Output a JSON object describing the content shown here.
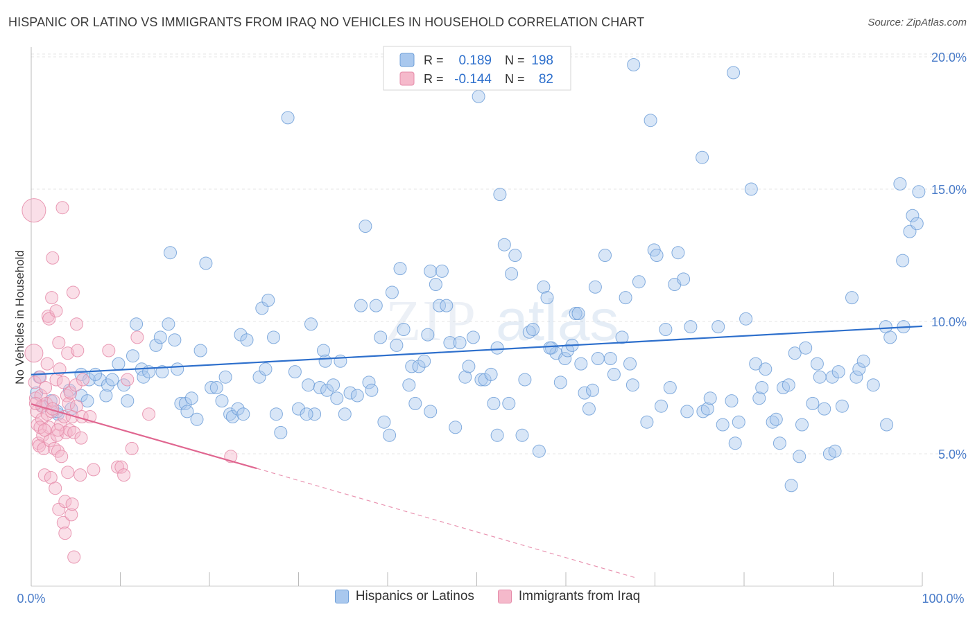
{
  "header": {
    "title": "HISPANIC OR LATINO VS IMMIGRANTS FROM IRAQ NO VEHICLES IN HOUSEHOLD CORRELATION CHART",
    "source": "Source: ZipAtlas.com"
  },
  "watermark": {
    "zip": "ZIP",
    "atlas": "atlas"
  },
  "stats_box": {
    "rows": [
      {
        "r_label": "R =",
        "r_value": "0.189",
        "n_label": "N =",
        "n_value": "198",
        "color": "#a9c8ee",
        "border": "#6f9fd8"
      },
      {
        "r_label": "R =",
        "r_value": "-0.144",
        "n_label": "N =",
        "n_value": "82",
        "color": "#f5b9cb",
        "border": "#e58aa8"
      }
    ]
  },
  "legend": [
    {
      "label": "Hispanics or Latinos",
      "color": "#a9c8ee",
      "border": "#6f9fd8"
    },
    {
      "label": "Immigrants from Iraq",
      "color": "#f5b9cb",
      "border": "#e58aa8"
    }
  ],
  "chart_data": {
    "type": "scatter",
    "title": "HISPANIC OR LATINO VS IMMIGRANTS FROM IRAQ NO VEHICLES IN HOUSEHOLD CORRELATION CHART",
    "xlabel": "",
    "ylabel": "No Vehicles in Household",
    "xlim": [
      0,
      100
    ],
    "ylim": [
      0,
      20.8
    ],
    "x_tick_labels": [
      "0.0%",
      "100.0%"
    ],
    "y_ticks": [
      5,
      10,
      15,
      20
    ],
    "y_tick_labels": [
      "5.0%",
      "10.0%",
      "15.0%",
      "20.0%"
    ],
    "grid": true,
    "legend_position": "bottom",
    "series": [
      {
        "name": "Hispanics or Latinos",
        "color": "#6f9fd8",
        "fill": "#a9c8ee",
        "trend": {
          "x": [
            0,
            100
          ],
          "y": [
            7.99,
            9.82
          ],
          "dashed_to": null,
          "color": "#2d6fcc"
        },
        "points": [
          [
            0.6,
            7.3
          ],
          [
            1.3,
            6.8
          ],
          [
            2.2,
            7.0
          ],
          [
            3.0,
            6.5
          ],
          [
            4.3,
            7.4
          ],
          [
            4.5,
            6.7
          ],
          [
            5.6,
            7.2
          ],
          [
            5.6,
            8.0
          ],
          [
            6.3,
            7.0
          ],
          [
            6.5,
            7.8
          ],
          [
            7.7,
            7.8
          ],
          [
            8.4,
            7.2
          ],
          [
            8.6,
            7.6
          ],
          [
            9.1,
            7.8
          ],
          [
            9.8,
            8.4
          ],
          [
            10.4,
            7.6
          ],
          [
            10.8,
            7.0
          ],
          [
            11.4,
            8.7
          ],
          [
            11.8,
            9.9
          ],
          [
            12.4,
            8.2
          ],
          [
            12.6,
            7.9
          ],
          [
            13.2,
            8.1
          ],
          [
            14.0,
            9.1
          ],
          [
            14.5,
            9.4
          ],
          [
            14.7,
            8.1
          ],
          [
            15.4,
            9.9
          ],
          [
            15.6,
            12.6
          ],
          [
            16.1,
            9.3
          ],
          [
            16.8,
            6.9
          ],
          [
            17.3,
            6.9
          ],
          [
            17.5,
            6.6
          ],
          [
            18.0,
            7.1
          ],
          [
            18.6,
            6.3
          ],
          [
            19.0,
            8.9
          ],
          [
            19.6,
            12.2
          ],
          [
            20.2,
            7.5
          ],
          [
            20.8,
            7.5
          ],
          [
            21.4,
            7.0
          ],
          [
            21.8,
            7.9
          ],
          [
            22.3,
            6.5
          ],
          [
            22.6,
            6.4
          ],
          [
            23.2,
            6.7
          ],
          [
            23.5,
            9.5
          ],
          [
            23.8,
            6.5
          ],
          [
            24.2,
            9.3
          ],
          [
            25.6,
            7.9
          ],
          [
            25.9,
            10.5
          ],
          [
            26.3,
            8.2
          ],
          [
            26.6,
            10.8
          ],
          [
            27.2,
            9.4
          ],
          [
            27.5,
            6.5
          ],
          [
            28.0,
            5.8
          ],
          [
            28.8,
            17.7
          ],
          [
            29.6,
            8.1
          ],
          [
            30.0,
            6.7
          ],
          [
            31.1,
            7.6
          ],
          [
            31.4,
            9.9
          ],
          [
            31.8,
            6.5
          ],
          [
            32.4,
            7.5
          ],
          [
            32.8,
            8.9
          ],
          [
            33.2,
            7.4
          ],
          [
            33.9,
            7.6
          ],
          [
            34.3,
            7.1
          ],
          [
            34.7,
            8.5
          ],
          [
            35.2,
            6.5
          ],
          [
            35.8,
            7.3
          ],
          [
            36.6,
            7.2
          ],
          [
            37.0,
            10.6
          ],
          [
            37.5,
            13.6
          ],
          [
            37.9,
            7.7
          ],
          [
            38.2,
            7.4
          ],
          [
            38.7,
            10.6
          ],
          [
            39.2,
            9.4
          ],
          [
            39.6,
            6.2
          ],
          [
            40.2,
            5.7
          ],
          [
            40.5,
            11.1
          ],
          [
            41.0,
            9.1
          ],
          [
            41.4,
            12.0
          ],
          [
            41.8,
            9.7
          ],
          [
            42.4,
            7.6
          ],
          [
            42.7,
            8.3
          ],
          [
            43.1,
            6.9
          ],
          [
            43.5,
            8.3
          ],
          [
            44.1,
            8.5
          ],
          [
            44.5,
            9.5
          ],
          [
            44.8,
            11.9
          ],
          [
            45.4,
            11.4
          ],
          [
            45.8,
            10.6
          ],
          [
            46.1,
            11.9
          ],
          [
            46.6,
            10.6
          ],
          [
            47.0,
            9.2
          ],
          [
            47.6,
            6.0
          ],
          [
            48.1,
            9.2
          ],
          [
            48.7,
            7.9
          ],
          [
            49.1,
            8.3
          ],
          [
            49.6,
            9.4
          ],
          [
            50.2,
            18.5
          ],
          [
            50.5,
            7.8
          ],
          [
            50.9,
            7.8
          ],
          [
            51.6,
            8.0
          ],
          [
            51.9,
            6.9
          ],
          [
            52.3,
            9.0
          ],
          [
            52.6,
            14.8
          ],
          [
            53.1,
            12.9
          ],
          [
            53.6,
            6.9
          ],
          [
            53.9,
            11.8
          ],
          [
            54.3,
            12.5
          ],
          [
            55.1,
            5.7
          ],
          [
            55.4,
            7.8
          ],
          [
            55.9,
            9.6
          ],
          [
            56.3,
            9.7
          ],
          [
            57.0,
            5.1
          ],
          [
            57.5,
            11.3
          ],
          [
            57.9,
            10.9
          ],
          [
            58.4,
            9.0
          ],
          [
            58.9,
            8.8
          ],
          [
            59.4,
            7.7
          ],
          [
            59.9,
            8.6
          ],
          [
            60.2,
            8.9
          ],
          [
            60.7,
            9.1
          ],
          [
            61.1,
            10.3
          ],
          [
            61.7,
            8.4
          ],
          [
            62.1,
            7.3
          ],
          [
            62.6,
            6.7
          ],
          [
            63.3,
            11.3
          ],
          [
            63.6,
            8.6
          ],
          [
            64.4,
            12.5
          ],
          [
            65.4,
            8.0
          ],
          [
            66.7,
            10.9
          ],
          [
            67.2,
            8.4
          ],
          [
            67.5,
            7.6
          ],
          [
            67.6,
            19.7
          ],
          [
            68.2,
            11.5
          ],
          [
            69.1,
            6.2
          ],
          [
            69.5,
            17.6
          ],
          [
            69.9,
            12.7
          ],
          [
            70.2,
            12.5
          ],
          [
            70.7,
            6.8
          ],
          [
            71.2,
            9.7
          ],
          [
            71.7,
            7.5
          ],
          [
            72.2,
            11.4
          ],
          [
            72.6,
            12.6
          ],
          [
            73.2,
            11.6
          ],
          [
            74.0,
            9.8
          ],
          [
            75.3,
            16.2
          ],
          [
            75.4,
            6.6
          ],
          [
            75.9,
            6.7
          ],
          [
            76.2,
            7.1
          ],
          [
            77.1,
            9.8
          ],
          [
            77.6,
            6.1
          ],
          [
            78.6,
            7.0
          ],
          [
            78.8,
            19.4
          ],
          [
            79.0,
            5.4
          ],
          [
            79.4,
            6.2
          ],
          [
            80.2,
            10.1
          ],
          [
            80.8,
            15.0
          ],
          [
            81.3,
            8.4
          ],
          [
            81.7,
            7.1
          ],
          [
            82.0,
            7.5
          ],
          [
            82.4,
            8.2
          ],
          [
            83.2,
            6.2
          ],
          [
            83.6,
            6.3
          ],
          [
            84.0,
            5.4
          ],
          [
            84.4,
            7.5
          ],
          [
            85.3,
            3.8
          ],
          [
            85.7,
            8.8
          ],
          [
            86.2,
            4.9
          ],
          [
            86.5,
            6.1
          ],
          [
            86.9,
            9.0
          ],
          [
            87.7,
            6.9
          ],
          [
            88.2,
            8.4
          ],
          [
            88.5,
            7.9
          ],
          [
            89.0,
            6.7
          ],
          [
            89.6,
            5.0
          ],
          [
            89.9,
            7.9
          ],
          [
            90.2,
            5.1
          ],
          [
            90.6,
            8.1
          ],
          [
            91.0,
            6.8
          ],
          [
            92.1,
            10.9
          ],
          [
            92.6,
            7.9
          ],
          [
            92.9,
            8.2
          ],
          [
            93.4,
            8.5
          ],
          [
            94.5,
            7.6
          ],
          [
            95.9,
            9.8
          ],
          [
            96.0,
            6.1
          ],
          [
            96.4,
            9.4
          ],
          [
            97.5,
            15.2
          ],
          [
            97.8,
            12.3
          ],
          [
            97.9,
            9.8
          ],
          [
            98.6,
            13.4
          ],
          [
            98.9,
            14.0
          ],
          [
            99.4,
            13.7
          ],
          [
            99.6,
            14.9
          ],
          [
            0.9,
            7.9
          ],
          [
            61.4,
            10.3
          ],
          [
            2.9,
            6.6
          ],
          [
            7.2,
            8.0
          ],
          [
            65.0,
            8.6
          ],
          [
            44.8,
            6.6
          ],
          [
            30.9,
            6.5
          ],
          [
            66.3,
            9.4
          ],
          [
            52.3,
            5.7
          ],
          [
            58.2,
            9.0
          ],
          [
            73.6,
            6.6
          ],
          [
            63.0,
            7.4
          ],
          [
            85.0,
            7.6
          ],
          [
            33.0,
            8.5
          ],
          [
            16.4,
            8.2
          ]
        ]
      },
      {
        "name": "Immigrants from Iraq",
        "color": "#e58aa8",
        "fill": "#f5b9cb",
        "trend": {
          "x": [
            0,
            25.3
          ],
          "y": [
            6.88,
            4.45
          ],
          "dashed_to": [
            68,
            0.3
          ],
          "color": "#e06690"
        },
        "points": [
          [
            0.3,
            14.2
          ],
          [
            0.3,
            8.8
          ],
          [
            0.4,
            7.7
          ],
          [
            0.5,
            7.1
          ],
          [
            0.6,
            6.6
          ],
          [
            0.7,
            6.1
          ],
          [
            0.8,
            5.4
          ],
          [
            0.9,
            5.3
          ],
          [
            1.0,
            7.9
          ],
          [
            1.1,
            7.2
          ],
          [
            1.2,
            6.8
          ],
          [
            1.2,
            6.3
          ],
          [
            1.3,
            5.7
          ],
          [
            1.4,
            5.2
          ],
          [
            1.5,
            4.2
          ],
          [
            1.6,
            7.5
          ],
          [
            1.7,
            6.9
          ],
          [
            1.8,
            6.5
          ],
          [
            1.8,
            8.4
          ],
          [
            1.9,
            10.2
          ],
          [
            2.0,
            10.1
          ],
          [
            2.0,
            6.0
          ],
          [
            2.1,
            5.5
          ],
          [
            2.2,
            4.1
          ],
          [
            2.3,
            10.9
          ],
          [
            2.3,
            6.6
          ],
          [
            2.4,
            12.4
          ],
          [
            2.5,
            7.0
          ],
          [
            2.6,
            5.2
          ],
          [
            2.7,
            3.7
          ],
          [
            2.8,
            7.8
          ],
          [
            2.8,
            10.4
          ],
          [
            2.9,
            5.7
          ],
          [
            3.0,
            5.1
          ],
          [
            3.1,
            2.9
          ],
          [
            3.1,
            9.2
          ],
          [
            3.2,
            8.2
          ],
          [
            3.3,
            6.1
          ],
          [
            3.4,
            4.9
          ],
          [
            3.5,
            14.3
          ],
          [
            3.6,
            2.4
          ],
          [
            3.6,
            7.7
          ],
          [
            3.7,
            6.4
          ],
          [
            3.8,
            3.2
          ],
          [
            3.8,
            2.0
          ],
          [
            3.9,
            5.8
          ],
          [
            4.0,
            7.2
          ],
          [
            4.1,
            4.3
          ],
          [
            4.1,
            8.8
          ],
          [
            4.2,
            6.9
          ],
          [
            4.3,
            5.9
          ],
          [
            4.4,
            7.3
          ],
          [
            4.5,
            2.7
          ],
          [
            4.6,
            3.1
          ],
          [
            4.6,
            6.4
          ],
          [
            4.7,
            11.1
          ],
          [
            4.8,
            5.8
          ],
          [
            4.8,
            1.1
          ],
          [
            5.0,
            7.6
          ],
          [
            5.1,
            6.8
          ],
          [
            5.1,
            9.9
          ],
          [
            5.2,
            8.9
          ],
          [
            5.5,
            4.2
          ],
          [
            5.6,
            5.6
          ],
          [
            5.7,
            6.4
          ],
          [
            5.8,
            7.8
          ],
          [
            6.6,
            6.4
          ],
          [
            7.0,
            4.4
          ],
          [
            8.7,
            8.9
          ],
          [
            9.7,
            4.5
          ],
          [
            10.1,
            4.5
          ],
          [
            10.4,
            4.2
          ],
          [
            10.8,
            7.8
          ],
          [
            11.3,
            5.2
          ],
          [
            11.9,
            9.4
          ],
          [
            13.2,
            6.5
          ],
          [
            22.4,
            4.9
          ],
          [
            0.5,
            6.9
          ],
          [
            1.0,
            6.0
          ],
          [
            1.5,
            5.9
          ],
          [
            2.4,
            6.7
          ],
          [
            3.0,
            5.9
          ]
        ]
      }
    ]
  }
}
